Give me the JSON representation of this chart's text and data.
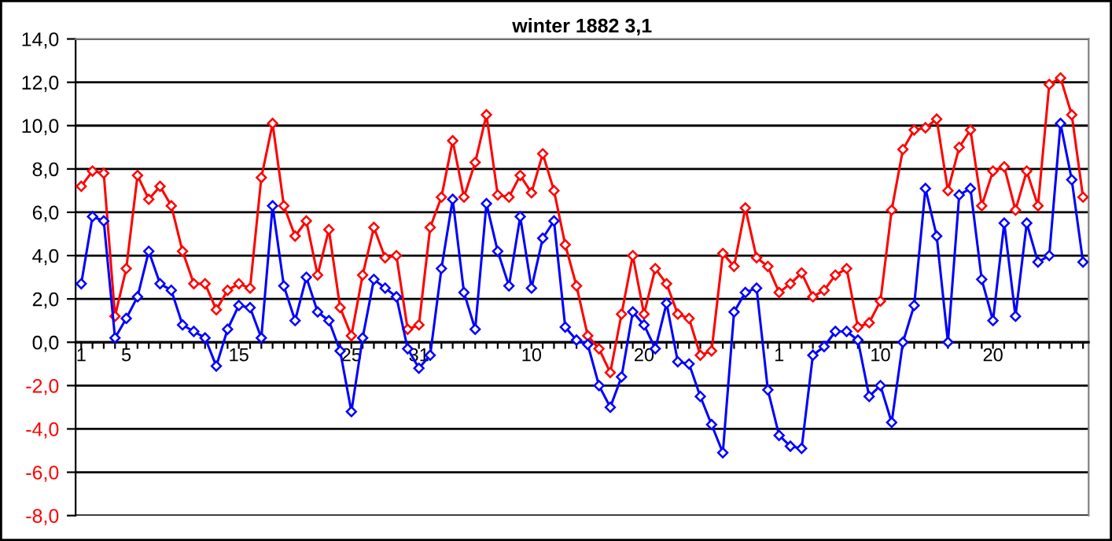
{
  "chart_data": {
    "type": "line",
    "title": "winter 1882 3,1",
    "categories": [
      "1",
      null,
      null,
      null,
      "5",
      null,
      null,
      null,
      null,
      null,
      null,
      null,
      null,
      null,
      "15",
      null,
      null,
      null,
      null,
      null,
      null,
      null,
      null,
      null,
      "25",
      null,
      null,
      null,
      null,
      null,
      "31",
      null,
      null,
      null,
      null,
      null,
      null,
      null,
      null,
      null,
      "10",
      null,
      null,
      null,
      null,
      null,
      null,
      null,
      null,
      null,
      "20",
      null,
      null,
      null,
      null,
      null,
      null,
      null,
      null,
      null,
      null,
      null,
      "1",
      null,
      null,
      null,
      null,
      null,
      null,
      null,
      null,
      "10",
      null,
      null,
      null,
      null,
      null,
      null,
      null,
      null,
      null,
      "20",
      null,
      null,
      null,
      null,
      null,
      null,
      null,
      null
    ],
    "series": [
      {
        "color": "#ff0000",
        "values": [
          7.2,
          7.9,
          7.8,
          1.2,
          3.4,
          7.7,
          6.6,
          7.2,
          6.3,
          4.2,
          2.7,
          2.7,
          1.5,
          2.4,
          2.7,
          2.5,
          7.6,
          10.1,
          6.3,
          4.9,
          5.6,
          3.1,
          5.2,
          1.6,
          0.3,
          3.1,
          5.3,
          3.9,
          4.0,
          0.6,
          0.8,
          5.3,
          6.7,
          9.3,
          6.7,
          8.3,
          10.5,
          6.8,
          6.7,
          7.7,
          6.9,
          8.7,
          7.0,
          4.5,
          2.6,
          0.3,
          -0.3,
          -1.4,
          1.3,
          4.0,
          1.3,
          3.4,
          2.7,
          1.3,
          1.1,
          -0.6,
          -0.4,
          4.1,
          3.5,
          6.2,
          3.9,
          3.5,
          2.3,
          2.7,
          3.2,
          2.1,
          2.4,
          3.1,
          3.4,
          0.7,
          0.9,
          1.9,
          6.1,
          8.9,
          9.8,
          9.9,
          10.3,
          7.0,
          9.0,
          9.8,
          6.3,
          7.9,
          8.1,
          6.1,
          7.9,
          6.3,
          11.9,
          12.2,
          10.5,
          6.7
        ]
      },
      {
        "color": "#0000ff",
        "values": [
          2.7,
          5.8,
          5.6,
          0.2,
          1.1,
          2.1,
          4.2,
          2.7,
          2.4,
          0.8,
          0.5,
          0.2,
          -1.1,
          0.6,
          1.7,
          1.6,
          0.2,
          6.3,
          2.6,
          1.0,
          3.0,
          1.4,
          1.0,
          -0.4,
          -3.2,
          0.2,
          2.9,
          2.5,
          2.1,
          -0.3,
          -1.2,
          -0.6,
          3.4,
          6.6,
          2.3,
          0.6,
          6.4,
          4.2,
          2.6,
          5.8,
          2.5,
          4.8,
          5.6,
          0.7,
          0.1,
          -0.1,
          -2.0,
          -3.0,
          -1.6,
          1.4,
          0.8,
          -0.3,
          1.8,
          -0.9,
          -1.0,
          -2.5,
          -3.8,
          -5.1,
          1.4,
          2.3,
          2.5,
          -2.2,
          -4.3,
          -4.8,
          -4.9,
          -0.6,
          -0.2,
          0.5,
          0.5,
          0.1,
          -2.5,
          -2.0,
          -3.7,
          0.0,
          1.7,
          7.1,
          4.9,
          0.0,
          6.8,
          7.1,
          2.9,
          1.0,
          5.5,
          1.2,
          5.5,
          3.7,
          4.0,
          10.1,
          7.5,
          3.7
        ]
      }
    ],
    "ylim": [
      -8,
      14
    ],
    "yticks": [
      {
        "value": -8,
        "label": "-8,0"
      },
      {
        "value": -6,
        "label": "-6,0"
      },
      {
        "value": -4,
        "label": "-4,0"
      },
      {
        "value": -2,
        "label": "-2,0"
      },
      {
        "value": 0,
        "label": "0,0"
      },
      {
        "value": 2,
        "label": "2,0"
      },
      {
        "value": 4,
        "label": "4,0"
      },
      {
        "value": 6,
        "label": "6,0"
      },
      {
        "value": 8,
        "label": "8,0"
      },
      {
        "value": 10,
        "label": "10,0"
      },
      {
        "value": 12,
        "label": "12,0"
      },
      {
        "value": 14,
        "label": "14,0"
      }
    ],
    "grid": "y",
    "marker": "diamond",
    "line_style": "solid",
    "legend": false
  }
}
